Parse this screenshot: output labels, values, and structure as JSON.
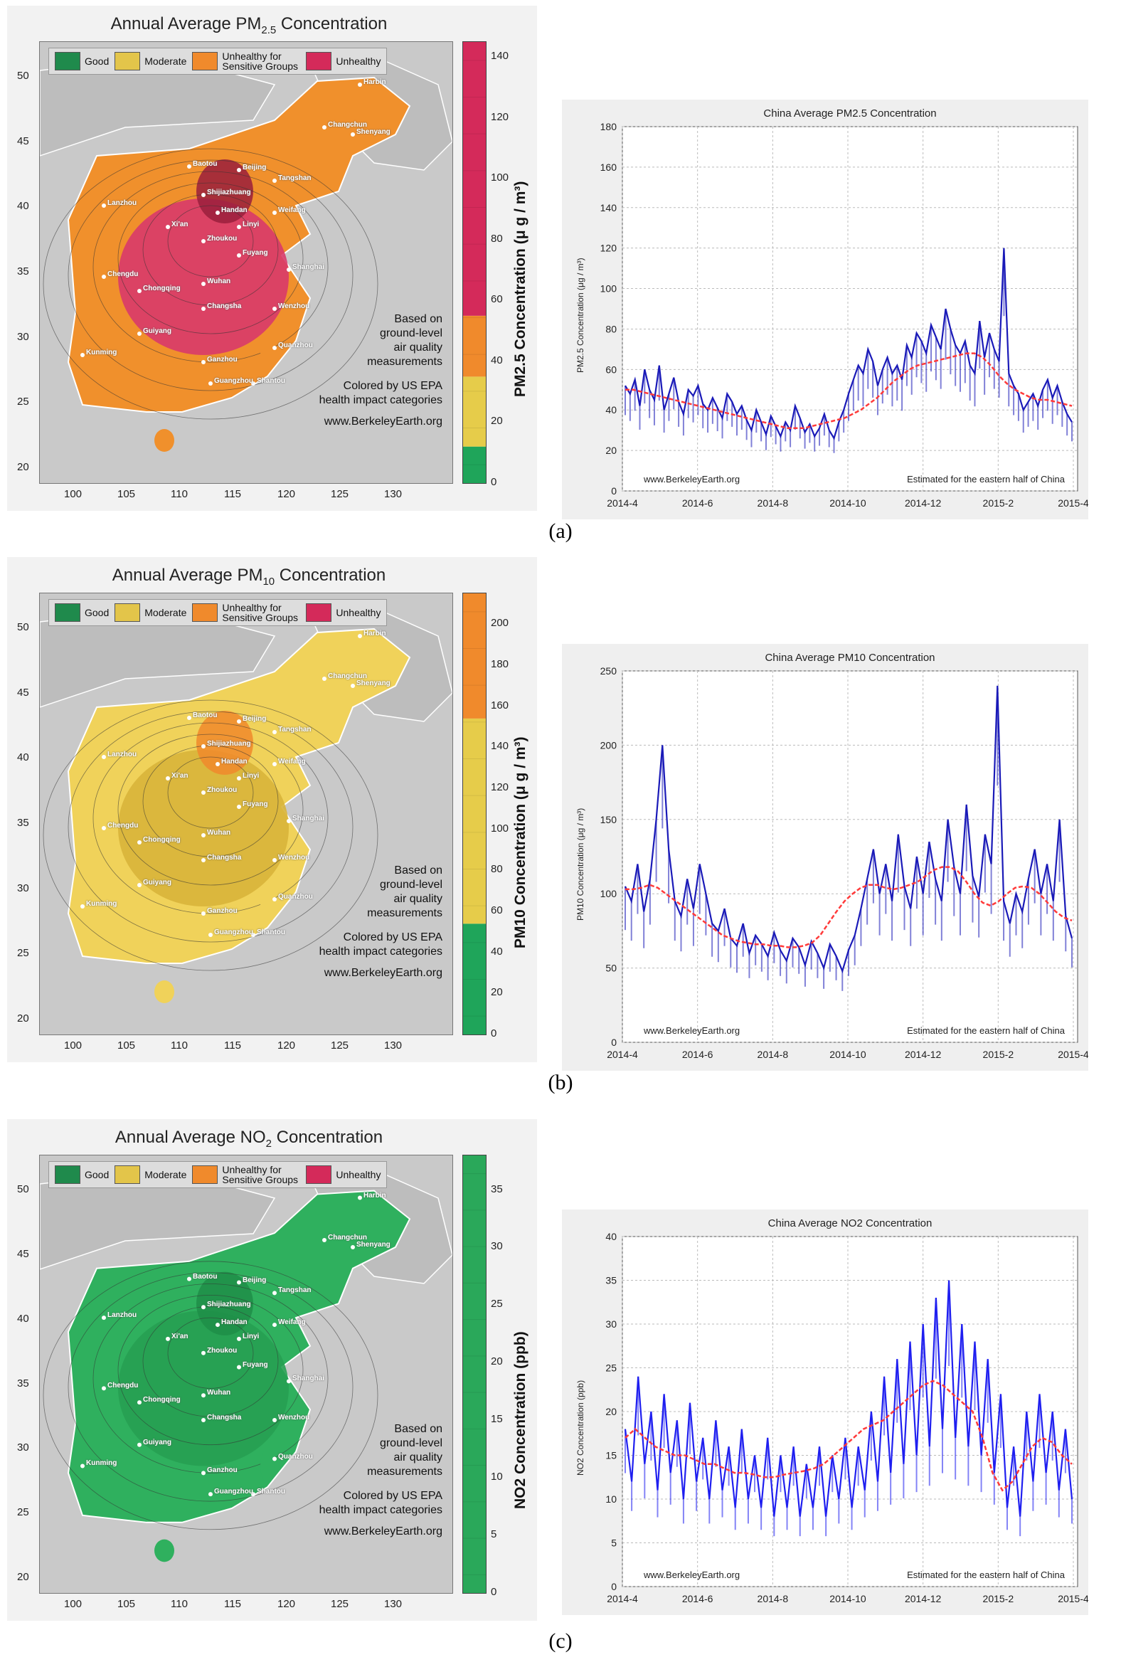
{
  "panels": [
    {
      "caption": "(a)",
      "map": {
        "title_prefix": "Annual Average PM",
        "title_sub": "2.5",
        "title_suffix": " Concentration",
        "legend": [
          {
            "label": "Good",
            "color": "#1f8a4c"
          },
          {
            "label": "Moderate",
            "color": "#e3c54a"
          },
          {
            "label": "Unhealthy for Sensitive Groups",
            "color": "#f08a2c"
          },
          {
            "label": "Unhealthy",
            "color": "#d42a5a"
          }
        ],
        "note_lines": [
          "Based on",
          "ground-level",
          "air quality",
          "measurements"
        ],
        "credit_lines": [
          "Colored by US EPA",
          "health impact categories"
        ],
        "website": "www.BerkeleyEarth.org",
        "lon_ticks": [
          "100",
          "105",
          "110",
          "115",
          "120",
          "125",
          "130"
        ],
        "lat_ticks": [
          "50",
          "45",
          "40",
          "35",
          "30",
          "25",
          "20"
        ],
        "fill_color": "#f0902c",
        "hot_color": "#d83a6a",
        "core_color": "#9a1e3c",
        "colorbar": {
          "ticks": [
            "140",
            "120",
            "100",
            "80",
            "60",
            "40",
            "20",
            "0"
          ],
          "max": 145,
          "bands": [
            {
              "from": 0,
              "to": 12,
              "color": "#1fa55a"
            },
            {
              "from": 12,
              "to": 35,
              "color": "#e6cc4a"
            },
            {
              "from": 35,
              "to": 55,
              "color": "#f08a2c"
            },
            {
              "from": 55,
              "to": 145,
              "color": "#d42a5a"
            }
          ],
          "label": "PM2.5 Concentration (μ g / m³)"
        },
        "cities": [
          "Harbin",
          "Changchun",
          "Shenyang",
          "Baotou",
          "Beijing",
          "Tangshan",
          "Shijiazhuang",
          "Handan",
          "Weifang",
          "Lanzhou",
          "Xi'an",
          "Linyi",
          "Zhoukou",
          "Fuyang",
          "Chengdu",
          "Chongqing",
          "Wuhan",
          "Shanghai",
          "Changsha",
          "Wenzhou",
          "Guiyang",
          "Kunming",
          "Ganzhou",
          "Guangzhou",
          "Quanzhou",
          "Shantou"
        ]
      },
      "chart": {
        "title": "China Average PM2.5 Concentration",
        "website": "www.BerkeleyEarth.org",
        "estimate": "Estimated for the eastern half of China",
        "daily_color": "#1a1ab8",
        "avg_color": "#ff3a3a",
        "chart_data": {
          "type": "line",
          "title": "China Average PM2.5 Concentration",
          "xlabel": "",
          "ylabel": "PM2.5 Concentration (μg / m³)",
          "x_ticks": [
            "2014-4",
            "2014-6",
            "2014-8",
            "2014-10",
            "2014-12",
            "2015-2",
            "2015-4"
          ],
          "ylim": [
            0,
            180
          ],
          "y_ticks": [
            0,
            20,
            40,
            60,
            80,
            100,
            120,
            140,
            160,
            180
          ],
          "grid": true,
          "series": [
            {
              "name": "daily",
              "values": [
                52,
                48,
                55,
                42,
                60,
                50,
                45,
                62,
                40,
                48,
                56,
                44,
                38,
                50,
                47,
                52,
                43,
                40,
                46,
                41,
                36,
                48,
                44,
                38,
                42,
                35,
                30,
                40,
                34,
                28,
                37,
                32,
                27,
                34,
                30,
                42,
                36,
                29,
                33,
                27,
                31,
                38,
                30,
                26,
                34,
                40,
                48,
                55,
                62,
                58,
                70,
                64,
                52,
                60,
                66,
                58,
                62,
                55,
                72,
                66,
                78,
                74,
                68,
                82,
                76,
                70,
                90,
                80,
                72,
                68,
                74,
                62,
                58,
                84,
                66,
                78,
                70,
                64,
                120,
                58,
                52,
                48,
                40,
                44,
                48,
                42,
                50,
                55,
                46,
                52,
                44,
                38,
                34
              ]
            },
            {
              "name": "30-day average",
              "values": [
                50,
                50,
                49,
                48,
                47,
                46,
                45,
                44,
                43,
                42,
                41,
                40,
                39,
                38,
                37,
                36,
                35,
                34,
                33,
                32,
                31,
                31,
                31,
                32,
                33,
                34,
                35,
                36,
                38,
                40,
                43,
                46,
                50,
                54,
                57,
                60,
                62,
                63,
                64,
                65,
                66,
                67,
                68,
                68,
                66,
                62,
                57,
                53,
                50,
                48,
                46,
                45,
                45,
                44,
                43,
                42
              ]
            }
          ]
        }
      }
    },
    {
      "caption": "(b)",
      "map": {
        "title_prefix": "Annual Average PM",
        "title_sub": "10",
        "title_suffix": " Concentration",
        "legend": [
          {
            "label": "Good",
            "color": "#1f8a4c"
          },
          {
            "label": "Moderate",
            "color": "#e3c54a"
          },
          {
            "label": "Unhealthy for Sensitive Groups",
            "color": "#f08a2c"
          },
          {
            "label": "Unhealthy",
            "color": "#d42a5a"
          }
        ],
        "note_lines": [
          "Based on",
          "ground-level",
          "air quality",
          "measurements"
        ],
        "credit_lines": [
          "Colored by US EPA",
          "health impact categories"
        ],
        "website": "www.BerkeleyEarth.org",
        "lon_ticks": [
          "100",
          "105",
          "110",
          "115",
          "120",
          "125",
          "130"
        ],
        "lat_ticks": [
          "50",
          "45",
          "40",
          "35",
          "30",
          "25",
          "20"
        ],
        "fill_color": "#f0d25a",
        "hot_color": "#d8b43a",
        "core_color": "#f08a2c",
        "colorbar": {
          "ticks": [
            "200",
            "180",
            "160",
            "140",
            "120",
            "100",
            "80",
            "60",
            "40",
            "20",
            "0"
          ],
          "max": 215,
          "bands": [
            {
              "from": 0,
              "to": 54,
              "color": "#1fa55a"
            },
            {
              "from": 54,
              "to": 154,
              "color": "#e6cc4a"
            },
            {
              "from": 154,
              "to": 215,
              "color": "#f08a2c"
            }
          ],
          "label": "PM10 Concentration (μ g / m³)"
        },
        "cities": [
          "Harbin",
          "Changchun",
          "Shenyang",
          "Baotou",
          "Beijing",
          "Tangshan",
          "Shijiazhuang",
          "Handan",
          "Weifang",
          "Lanzhou",
          "Xi'an",
          "Linyi",
          "Zhoukou",
          "Fuyang",
          "Chengdu",
          "Chongqing",
          "Wuhan",
          "Shanghai",
          "Changsha",
          "Wenzhou",
          "Guiyang",
          "Kunming",
          "Ganzhou",
          "Guangzhou",
          "Quanzhou",
          "Shantou"
        ]
      },
      "chart": {
        "title": "China Average PM10 Concentration",
        "website": "www.BerkeleyEarth.org",
        "estimate": "Estimated for the eastern half of China",
        "daily_color": "#1a1ab8",
        "avg_color": "#ff3a3a",
        "chart_data": {
          "type": "line",
          "title": "China Average PM10 Concentration",
          "xlabel": "",
          "ylabel": "PM10 Concentration (μg / m³)",
          "x_ticks": [
            "2014-4",
            "2014-6",
            "2014-8",
            "2014-10",
            "2014-12",
            "2015-2",
            "2015-4"
          ],
          "ylim": [
            0,
            250
          ],
          "y_ticks": [
            0,
            50,
            100,
            150,
            200,
            250
          ],
          "grid": true,
          "series": [
            {
              "name": "daily",
              "values": [
                105,
                95,
                120,
                88,
                110,
                150,
                200,
                130,
                95,
                85,
                110,
                90,
                120,
                100,
                80,
                75,
                90,
                70,
                65,
                80,
                60,
                72,
                66,
                58,
                74,
                62,
                55,
                70,
                64,
                52,
                68,
                60,
                50,
                66,
                58,
                48,
                62,
                72,
                90,
                110,
                130,
                100,
                120,
                95,
                140,
                105,
                90,
                125,
                100,
                135,
                110,
                95,
                150,
                118,
                100,
                160,
                112,
                98,
                140,
                120,
                240,
                95,
                80,
                100,
                88,
                110,
                130,
                100,
                120,
                95,
                150,
                85,
                70
              ]
            },
            {
              "name": "30-day average",
              "values": [
                103,
                103,
                104,
                106,
                104,
                100,
                96,
                92,
                88,
                84,
                80,
                76,
                72,
                70,
                68,
                67,
                66,
                66,
                65,
                65,
                64,
                64,
                65,
                67,
                72,
                80,
                88,
                95,
                100,
                104,
                106,
                106,
                104,
                103,
                104,
                106,
                108,
                112,
                116,
                118,
                118,
                115,
                108,
                100,
                94,
                92,
                95,
                100,
                104,
                105,
                104,
                100,
                94,
                88,
                84,
                82
              ]
            }
          ]
        }
      }
    },
    {
      "caption": "(c)",
      "map": {
        "title_prefix": "Annual Average NO",
        "title_sub": "2",
        "title_suffix": " Concentration",
        "legend": [
          {
            "label": "Good",
            "color": "#1f8a4c"
          },
          {
            "label": "Moderate",
            "color": "#e3c54a"
          },
          {
            "label": "Unhealthy for Sensitive Groups",
            "color": "#f08a2c"
          },
          {
            "label": "Unhealthy",
            "color": "#d42a5a"
          }
        ],
        "note_lines": [
          "Based on",
          "ground-level",
          "air quality",
          "measurements"
        ],
        "credit_lines": [
          "Colored by US EPA",
          "health impact categories"
        ],
        "website": "www.BerkeleyEarth.org",
        "lon_ticks": [
          "100",
          "105",
          "110",
          "115",
          "120",
          "125",
          "130"
        ],
        "lat_ticks": [
          "50",
          "45",
          "40",
          "35",
          "30",
          "25",
          "20"
        ],
        "fill_color": "#2fb05e",
        "hot_color": "#27a052",
        "core_color": "#1f8e48",
        "colorbar": {
          "ticks": [
            "35",
            "30",
            "25",
            "20",
            "15",
            "10",
            "5",
            "0"
          ],
          "max": 38,
          "bands": [
            {
              "from": 0,
              "to": 38,
              "color": "#2aa85a"
            }
          ],
          "label": "NO2 Concentration (ppb)"
        },
        "cities": [
          "Harbin",
          "Changchun",
          "Shenyang",
          "Baotou",
          "Beijing",
          "Tangshan",
          "Shijiazhuang",
          "Handan",
          "Weifang",
          "Lanzhou",
          "Xi'an",
          "Linyi",
          "Zhoukou",
          "Fuyang",
          "Chengdu",
          "Chongqing",
          "Wuhan",
          "Shanghai",
          "Changsha",
          "Wenzhou",
          "Guiyang",
          "Kunming",
          "Ganzhou",
          "Guangzhou",
          "Quanzhou",
          "Shantou"
        ]
      },
      "chart": {
        "title": "China Average NO2 Concentration",
        "website": "www.BerkeleyEarth.org",
        "estimate": "Estimated for the eastern half of China",
        "daily_color": "#1f1ff0",
        "avg_color": "#ff3a3a",
        "chart_data": {
          "type": "line",
          "title": "China Average NO2 Concentration",
          "xlabel": "",
          "ylabel": "NO2 Concentration (ppb)",
          "x_ticks": [
            "2014-4",
            "2014-6",
            "2014-8",
            "2014-10",
            "2014-12",
            "2015-2",
            "2015-4"
          ],
          "ylim": [
            0,
            40
          ],
          "y_ticks": [
            0,
            5,
            10,
            15,
            20,
            25,
            30,
            35,
            40
          ],
          "grid": true,
          "series": [
            {
              "name": "daily",
              "values": [
                18,
                12,
                24,
                14,
                20,
                11,
                22,
                13,
                19,
                10,
                21,
                12,
                17,
                10,
                19,
                11,
                16,
                9,
                18,
                10,
                15,
                9,
                17,
                8,
                15,
                9,
                16,
                8,
                14,
                9,
                16,
                8,
                15,
                10,
                17,
                9,
                16,
                11,
                20,
                12,
                24,
                13,
                26,
                14,
                28,
                15,
                30,
                16,
                33,
                18,
                35,
                17,
                30,
                16,
                28,
                15,
                26,
                13,
                22,
                9,
                16,
                8,
                20,
                12,
                22,
                13,
                20,
                11,
                18,
                10
              ]
            },
            {
              "name": "30-day average",
              "values": [
                17,
                18,
                17,
                16,
                15.5,
                15,
                15,
                14.5,
                14,
                14,
                13.5,
                13,
                13,
                12.8,
                12.5,
                12.5,
                12.8,
                13,
                13.2,
                13.5,
                14,
                15,
                16,
                17,
                18,
                18.5,
                19,
                20,
                21,
                22,
                23,
                23.5,
                23,
                22,
                21,
                20,
                17,
                13,
                11,
                12,
                14,
                16,
                17,
                16.5,
                15,
                14
              ]
            }
          ]
        }
      }
    }
  ]
}
